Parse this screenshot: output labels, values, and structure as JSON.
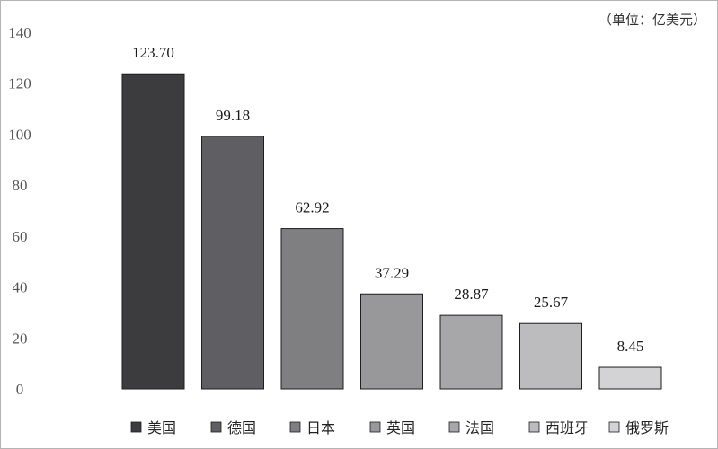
{
  "chart_data": {
    "type": "bar",
    "unit_note": "（单位：亿美元）",
    "categories": [
      "美国",
      "德国",
      "日本",
      "英国",
      "法国",
      "西班牙",
      "俄罗斯"
    ],
    "values": [
      123.7,
      99.18,
      62.92,
      37.29,
      28.87,
      25.67,
      8.45
    ],
    "value_labels": [
      "123.70",
      "99.18",
      "62.92",
      "37.29",
      "28.87",
      "25.67",
      "8.45"
    ],
    "ylim": [
      0,
      140
    ],
    "yticks": [
      0,
      20,
      40,
      60,
      80,
      100,
      120,
      140
    ],
    "grid": false,
    "legend_position": "bottom",
    "colors": [
      "#3c3c3e",
      "#5f5e62",
      "#7f7f82",
      "#98989a",
      "#a7a7a9",
      "#bcbcbe",
      "#d3d3d5"
    ],
    "title": "",
    "xlabel": "",
    "ylabel": ""
  }
}
